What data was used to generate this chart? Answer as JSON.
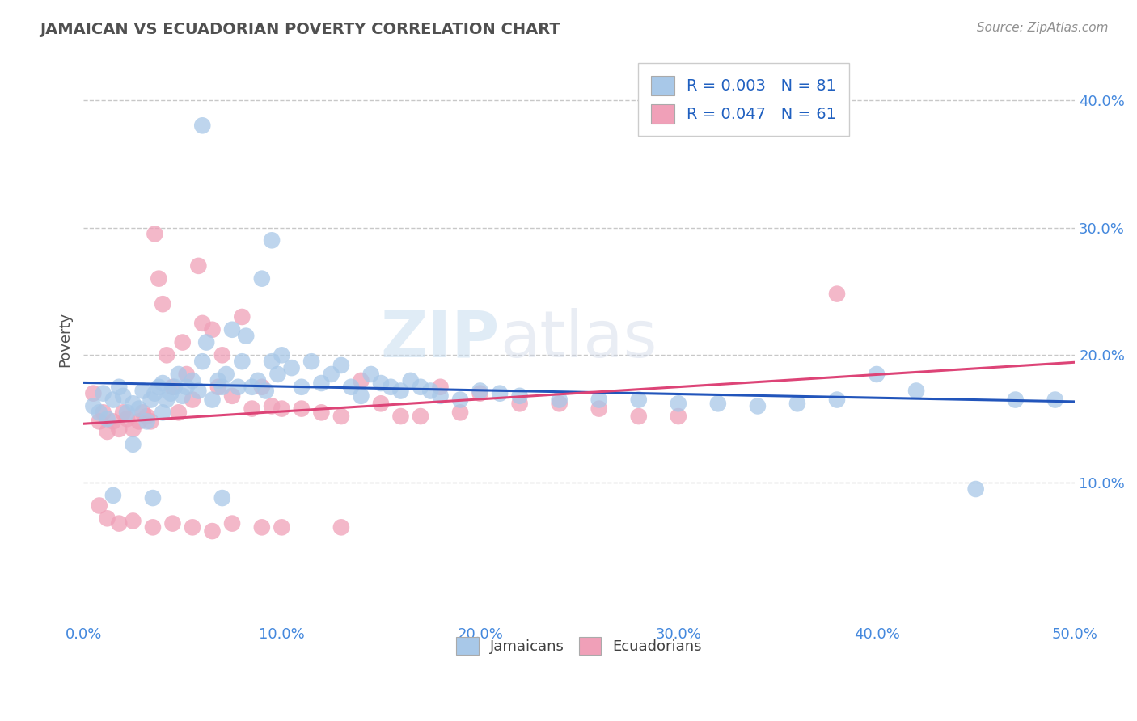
{
  "title": "JAMAICAN VS ECUADORIAN POVERTY CORRELATION CHART",
  "source": "Source: ZipAtlas.com",
  "ylabel": "Poverty",
  "xlabel": "",
  "xlim": [
    0.0,
    0.5
  ],
  "ylim": [
    -0.01,
    0.435
  ],
  "yticks": [
    0.1,
    0.2,
    0.3,
    0.4
  ],
  "ytick_labels": [
    "10.0%",
    "20.0%",
    "30.0%",
    "40.0%"
  ],
  "xticks": [
    0.0,
    0.1,
    0.2,
    0.3,
    0.4,
    0.5
  ],
  "xtick_labels": [
    "0.0%",
    "10.0%",
    "20.0%",
    "30.0%",
    "40.0%",
    "50.0%"
  ],
  "jamaicans_color": "#a8c8e8",
  "ecuadorians_color": "#f0a0b8",
  "line_jamaicans_color": "#2255bb",
  "line_ecuadorians_color": "#dd4477",
  "R_jamaicans": 0.003,
  "N_jamaicans": 81,
  "R_ecuadorians": 0.047,
  "N_ecuadorians": 61,
  "legend_R_color": "#2060c0",
  "jamaicans_x": [
    0.005,
    0.008,
    0.01,
    0.012,
    0.015,
    0.018,
    0.02,
    0.022,
    0.025,
    0.028,
    0.03,
    0.032,
    0.034,
    0.036,
    0.038,
    0.04,
    0.04,
    0.042,
    0.044,
    0.046,
    0.048,
    0.05,
    0.052,
    0.055,
    0.058,
    0.06,
    0.062,
    0.065,
    0.068,
    0.07,
    0.072,
    0.075,
    0.078,
    0.08,
    0.082,
    0.085,
    0.088,
    0.09,
    0.092,
    0.095,
    0.098,
    0.1,
    0.105,
    0.11,
    0.115,
    0.12,
    0.125,
    0.13,
    0.135,
    0.14,
    0.145,
    0.15,
    0.155,
    0.16,
    0.165,
    0.17,
    0.175,
    0.18,
    0.19,
    0.2,
    0.21,
    0.22,
    0.24,
    0.26,
    0.28,
    0.3,
    0.32,
    0.34,
    0.36,
    0.38,
    0.4,
    0.42,
    0.45,
    0.47,
    0.49,
    0.095,
    0.06,
    0.025,
    0.015,
    0.035,
    0.07
  ],
  "jamaicans_y": [
    0.16,
    0.155,
    0.17,
    0.15,
    0.165,
    0.175,
    0.168,
    0.155,
    0.162,
    0.158,
    0.172,
    0.148,
    0.165,
    0.17,
    0.175,
    0.155,
    0.178,
    0.165,
    0.17,
    0.175,
    0.185,
    0.168,
    0.175,
    0.18,
    0.172,
    0.195,
    0.21,
    0.165,
    0.18,
    0.175,
    0.185,
    0.22,
    0.175,
    0.195,
    0.215,
    0.175,
    0.18,
    0.26,
    0.172,
    0.195,
    0.185,
    0.2,
    0.19,
    0.175,
    0.195,
    0.178,
    0.185,
    0.192,
    0.175,
    0.168,
    0.185,
    0.178,
    0.175,
    0.172,
    0.18,
    0.175,
    0.172,
    0.168,
    0.165,
    0.172,
    0.17,
    0.168,
    0.165,
    0.165,
    0.165,
    0.162,
    0.162,
    0.16,
    0.162,
    0.165,
    0.185,
    0.172,
    0.095,
    0.165,
    0.165,
    0.29,
    0.38,
    0.13,
    0.09,
    0.088,
    0.088
  ],
  "ecuadorians_x": [
    0.005,
    0.008,
    0.01,
    0.012,
    0.015,
    0.018,
    0.02,
    0.022,
    0.025,
    0.028,
    0.03,
    0.032,
    0.034,
    0.036,
    0.038,
    0.04,
    0.042,
    0.045,
    0.048,
    0.05,
    0.052,
    0.055,
    0.058,
    0.06,
    0.065,
    0.068,
    0.07,
    0.075,
    0.08,
    0.085,
    0.09,
    0.095,
    0.1,
    0.11,
    0.12,
    0.13,
    0.14,
    0.15,
    0.16,
    0.17,
    0.18,
    0.19,
    0.2,
    0.22,
    0.24,
    0.26,
    0.28,
    0.3,
    0.38,
    0.008,
    0.012,
    0.018,
    0.025,
    0.035,
    0.045,
    0.055,
    0.065,
    0.075,
    0.09,
    0.1,
    0.13
  ],
  "ecuadorians_y": [
    0.17,
    0.148,
    0.155,
    0.14,
    0.148,
    0.142,
    0.155,
    0.15,
    0.142,
    0.148,
    0.155,
    0.152,
    0.148,
    0.295,
    0.26,
    0.24,
    0.2,
    0.175,
    0.155,
    0.21,
    0.185,
    0.165,
    0.27,
    0.225,
    0.22,
    0.175,
    0.2,
    0.168,
    0.23,
    0.158,
    0.175,
    0.16,
    0.158,
    0.158,
    0.155,
    0.152,
    0.18,
    0.162,
    0.152,
    0.152,
    0.175,
    0.155,
    0.17,
    0.162,
    0.162,
    0.158,
    0.152,
    0.152,
    0.248,
    0.082,
    0.072,
    0.068,
    0.07,
    0.065,
    0.068,
    0.065,
    0.062,
    0.068,
    0.065,
    0.065,
    0.065
  ],
  "watermark_zip": "ZIP",
  "watermark_atlas": "atlas",
  "background_color": "#ffffff",
  "grid_color": "#c8c8c8",
  "title_color": "#505050",
  "tick_color": "#4488dd"
}
